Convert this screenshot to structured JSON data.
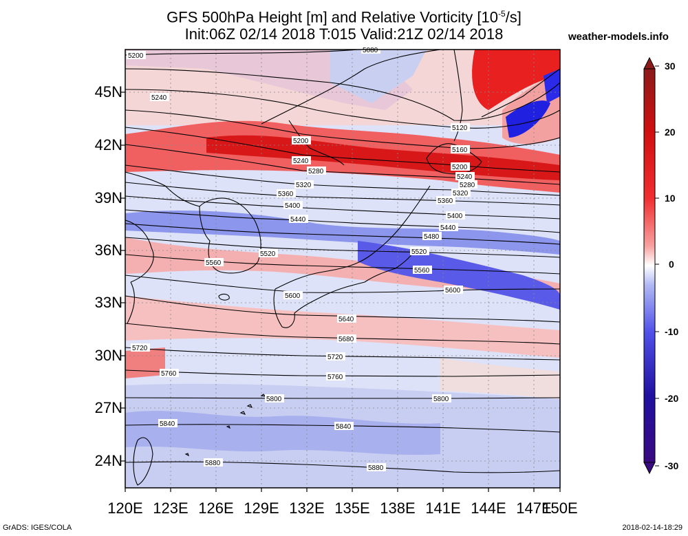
{
  "title_line1": "GFS 500hPa Height [m] and Relative Vorticity [10",
  "title_line1_exp": "-5",
  "title_line1_end": "/s]",
  "title_line2": "Init:06Z 02/14 2018 T:015 Valid:21Z 02/14 2018",
  "site": "weather-models.info",
  "footer_left": "GrADS: IGES/COLA",
  "footer_right": "2018-02-14-18:29",
  "lat_labels": [
    "45N",
    "42N",
    "39N",
    "36N",
    "33N",
    "30N",
    "27N",
    "24N"
  ],
  "lon_labels": [
    "120E",
    "123E",
    "126E",
    "129E",
    "132E",
    "135E",
    "138E",
    "141E",
    "144E",
    "147E",
    "150E"
  ],
  "colorbar": {
    "labels": [
      "30",
      "20",
      "10",
      "0",
      "-10",
      "-20",
      "-30"
    ],
    "colors": [
      "#8b1a1a",
      "#d01010",
      "#f03030",
      "#f89090",
      "#ffffff",
      "#a0a8f0",
      "#3030e0",
      "#2010a0",
      "#401080"
    ]
  },
  "contours": [
    {
      "value": "5080",
      "label": "5080"
    },
    {
      "value": "5120",
      "label": "5120"
    },
    {
      "value": "5160",
      "label": "5160"
    },
    {
      "value": "5200",
      "label": "5200"
    },
    {
      "value": "5240",
      "label": "5240"
    },
    {
      "value": "5280",
      "label": "5280"
    },
    {
      "value": "5320",
      "label": "5320"
    },
    {
      "value": "5360",
      "label": "5360"
    },
    {
      "value": "5400",
      "label": "5400"
    },
    {
      "value": "5440",
      "label": "5440"
    },
    {
      "value": "5480",
      "label": "5480"
    },
    {
      "value": "5520",
      "label": "5520"
    },
    {
      "value": "5560",
      "label": "5560"
    },
    {
      "value": "5600",
      "label": "5600"
    },
    {
      "value": "5640",
      "label": "5640"
    },
    {
      "value": "5680",
      "label": "5680"
    },
    {
      "value": "5720",
      "label": "5720"
    },
    {
      "value": "5760",
      "label": "5760"
    },
    {
      "value": "5800",
      "label": "5800"
    },
    {
      "value": "5840",
      "label": "5840"
    },
    {
      "value": "5880",
      "label": "5880"
    }
  ]
}
